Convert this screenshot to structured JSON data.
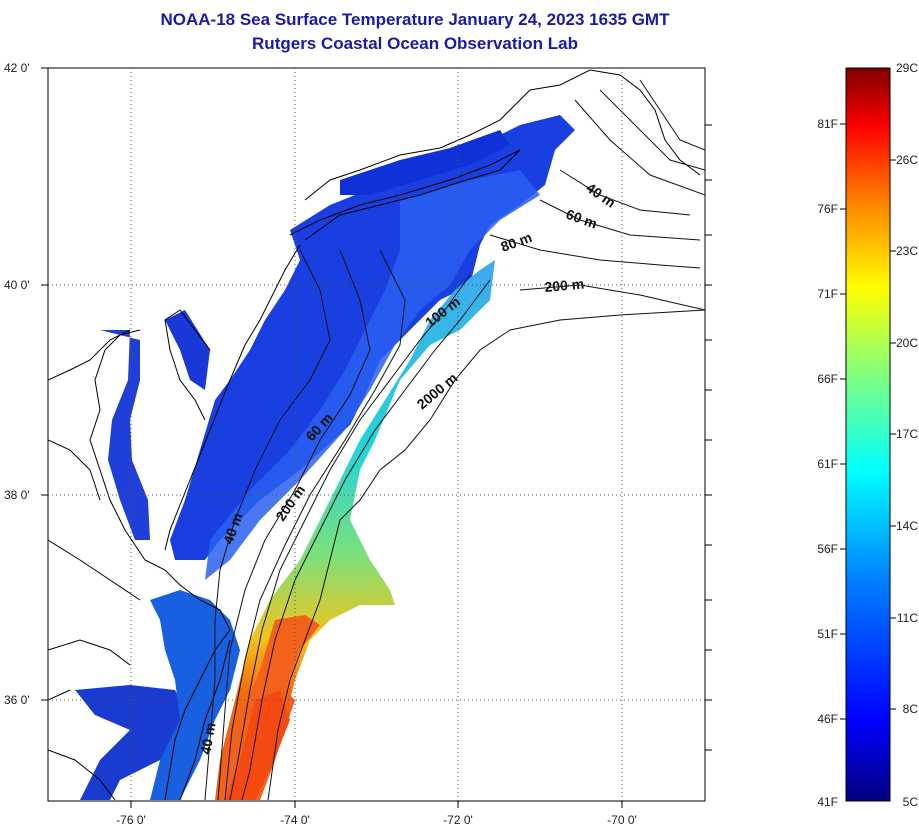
{
  "title": {
    "line1": "NOAA-18 Sea Surface Temperature January 24, 2023 1635 GMT",
    "line2": "Rutgers Coastal Ocean Observation Lab"
  },
  "map": {
    "lon_labels": [
      "-76 0'",
      "-74 0'",
      "-72 0'",
      "-70 0'"
    ],
    "lat_labels": [
      "42 0'",
      "40 0'",
      "38 0'",
      "36 0'"
    ],
    "grid": "dotted",
    "contour_labels": [
      "40 m",
      "60 m",
      "80 m",
      "200 m",
      "100 m",
      "2000 m",
      "60 m",
      "200 m",
      "40 m",
      "40 m"
    ]
  },
  "colorbar": {
    "fahrenheit_labels": [
      "81F",
      "76F",
      "71F",
      "66F",
      "61F",
      "56F",
      "51F",
      "46F",
      "41F"
    ],
    "celsius_labels": [
      "29C",
      "26C",
      "23C",
      "20C",
      "17C",
      "14C",
      "11C",
      "8C",
      "5C"
    ],
    "range_c": [
      5,
      29
    ],
    "colors": [
      "#00007f",
      "#0000ff",
      "#007fff",
      "#00ffff",
      "#7fff7f",
      "#ffff00",
      "#ff7f00",
      "#ff0000",
      "#7f0000"
    ]
  }
}
